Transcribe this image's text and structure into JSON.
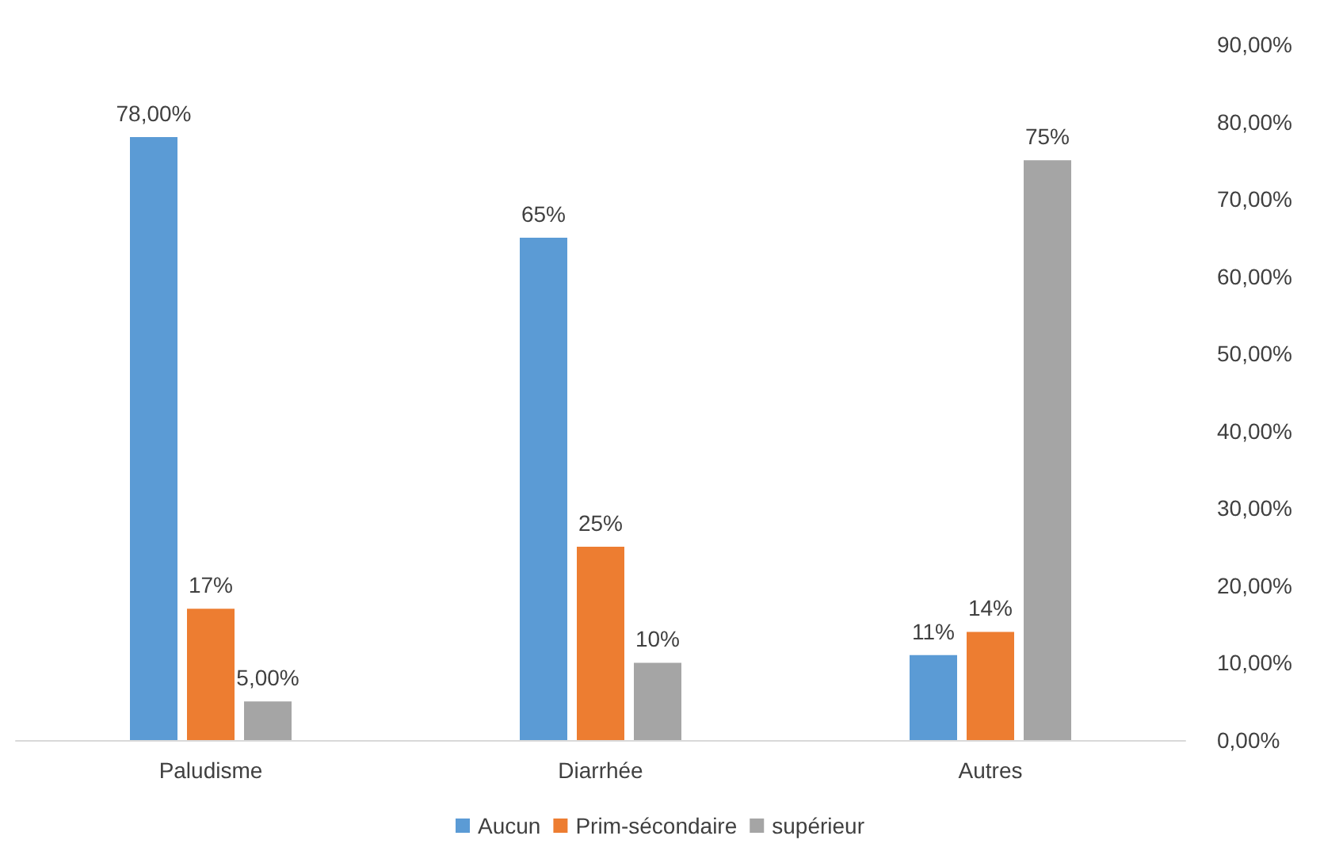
{
  "chart_data": {
    "type": "bar",
    "categories": [
      "Paludisme",
      "Diarrhée",
      "Autres"
    ],
    "series": [
      {
        "name": "Aucun",
        "color": "#5b9bd5",
        "values": [
          78,
          65,
          11
        ],
        "value_labels": [
          "78,00%",
          "65%",
          "11%"
        ]
      },
      {
        "name": "Prim-sécondaire",
        "color": "#ed7d31",
        "values": [
          17,
          25,
          14
        ],
        "value_labels": [
          "17%",
          "25%",
          "14%"
        ]
      },
      {
        "name": "supérieur",
        "color": "#a5a5a5",
        "values": [
          5,
          10,
          75
        ],
        "value_labels": [
          "5,00%",
          "10%",
          "75%"
        ]
      }
    ],
    "ylim": [
      0,
      90
    ],
    "yticks": [
      {
        "value": 0,
        "label": "0,00%"
      },
      {
        "value": 10,
        "label": "10,00%"
      },
      {
        "value": 20,
        "label": "20,00%"
      },
      {
        "value": 30,
        "label": "30,00%"
      },
      {
        "value": 40,
        "label": "40,00%"
      },
      {
        "value": 50,
        "label": "50,00%"
      },
      {
        "value": 60,
        "label": "60,00%"
      },
      {
        "value": 70,
        "label": "70,00%"
      },
      {
        "value": 80,
        "label": "80,00%"
      },
      {
        "value": 90,
        "label": "90,00%"
      }
    ],
    "grid": false,
    "legend": "bottom"
  }
}
